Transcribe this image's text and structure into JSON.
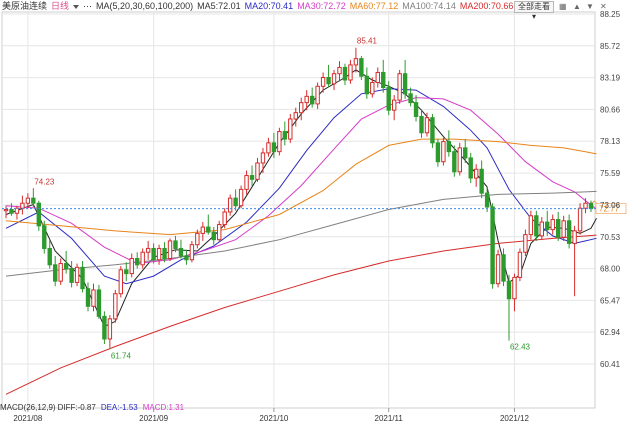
{
  "header": {
    "symbol": "美原油连续",
    "period": "日线",
    "ma_params": "MA(5,20,30,60,100,200)",
    "ma_values": [
      {
        "label": "MA5:72.01",
        "color": "#333333"
      },
      {
        "label": "MA20:70.41",
        "color": "#2b2bc4"
      },
      {
        "label": "MA30:72.72",
        "color": "#d63cc8"
      },
      {
        "label": "MA60:77.12",
        "color": "#e8841a"
      },
      {
        "label": "MA100:74.14",
        "color": "#808080"
      },
      {
        "label": "MA200:70.66",
        "color": "#d62c2c"
      }
    ],
    "dropdown_label": "全部走看",
    "icons": [
      "grid-icon",
      "up-icon",
      "down-icon",
      "close-icon"
    ]
  },
  "macd": {
    "params": "MACD(26,12,9)",
    "diff": "DIFF:-0.87",
    "dea": "DEA:-1.53",
    "macd": "MACD:1.31"
  },
  "colors": {
    "up": "#d62c2c",
    "down": "#2c9a2c",
    "grid": "#e6e6e6",
    "current_line": "#3b8de0",
    "current_tag_bg": "#ffffff",
    "current_tag_text": "#e8841a"
  },
  "chart_data": {
    "type": "candlestick",
    "y_ticks": [
      "88.25",
      "85.72",
      "83.19",
      "80.66",
      "78.13",
      "75.59",
      "73.06",
      "70.53",
      "68.00",
      "65.47",
      "62.94",
      "60.41"
    ],
    "ylim": [
      58.5,
      88.25
    ],
    "x_ticks": [
      {
        "label": "2021/08",
        "index": 4
      },
      {
        "label": "2021/09",
        "index": 27
      },
      {
        "label": "2021/10",
        "index": 49
      },
      {
        "label": "2021/11",
        "index": 70
      },
      {
        "label": "2021/12",
        "index": 93
      }
    ],
    "current_price": "72.77",
    "annotations": [
      {
        "text": "85.41",
        "index": 64,
        "value": 85.41,
        "color": "#c83232",
        "pos": "above"
      },
      {
        "text": "74.23",
        "index": 5,
        "value": 74.23,
        "color": "#c83232",
        "pos": "above"
      },
      {
        "text": "61.74",
        "index": 19,
        "value": 61.74,
        "color": "#2c9a2c",
        "pos": "below"
      },
      {
        "text": "62.43",
        "index": 92,
        "value": 62.43,
        "color": "#2c9a2c",
        "pos": "below"
      }
    ],
    "candles": [
      [
        72.6,
        73.0,
        72.0,
        72.7
      ],
      [
        72.7,
        73.2,
        72.2,
        72.4
      ],
      [
        72.4,
        73.0,
        71.9,
        72.8
      ],
      [
        72.8,
        73.8,
        72.3,
        73.2
      ],
      [
        73.2,
        74.0,
        72.8,
        73.6
      ],
      [
        73.6,
        74.23,
        72.9,
        73.2
      ],
      [
        73.2,
        73.4,
        71.0,
        71.4
      ],
      [
        71.4,
        71.8,
        69.2,
        69.6
      ],
      [
        69.6,
        70.3,
        68.0,
        68.3
      ],
      [
        68.3,
        69.0,
        66.6,
        67.0
      ],
      [
        67.0,
        68.8,
        66.7,
        68.4
      ],
      [
        68.4,
        69.4,
        67.6,
        68.0
      ],
      [
        68.0,
        68.6,
        66.5,
        66.9
      ],
      [
        66.9,
        68.4,
        66.6,
        68.1
      ],
      [
        68.1,
        68.6,
        66.1,
        66.4
      ],
      [
        66.4,
        66.9,
        64.6,
        65.0
      ],
      [
        65.0,
        66.8,
        64.6,
        66.3
      ],
      [
        66.3,
        66.7,
        64.0,
        64.2
      ],
      [
        64.2,
        64.6,
        62.0,
        62.4
      ],
      [
        62.4,
        64.3,
        61.74,
        64.0
      ],
      [
        64.0,
        66.3,
        63.7,
        66.0
      ],
      [
        66.0,
        68.2,
        65.7,
        67.9
      ],
      [
        67.9,
        68.5,
        67.0,
        67.6
      ],
      [
        67.6,
        69.2,
        67.3,
        68.8
      ],
      [
        68.8,
        69.3,
        68.0,
        68.3
      ],
      [
        68.3,
        69.6,
        68.0,
        69.3
      ],
      [
        69.3,
        70.2,
        68.7,
        69.6
      ],
      [
        69.6,
        70.0,
        68.4,
        68.7
      ],
      [
        68.7,
        69.9,
        68.3,
        69.6
      ],
      [
        69.6,
        70.1,
        68.5,
        68.8
      ],
      [
        68.8,
        70.4,
        68.6,
        70.2
      ],
      [
        70.2,
        70.6,
        69.3,
        69.6
      ],
      [
        69.6,
        70.3,
        68.8,
        69.0
      ],
      [
        69.0,
        69.5,
        68.3,
        68.7
      ],
      [
        68.7,
        70.2,
        68.5,
        69.9
      ],
      [
        69.9,
        71.1,
        69.6,
        70.8
      ],
      [
        70.8,
        71.7,
        70.2,
        71.3
      ],
      [
        71.3,
        72.3,
        70.7,
        70.9
      ],
      [
        70.9,
        71.3,
        69.9,
        70.3
      ],
      [
        70.3,
        71.8,
        70.1,
        71.5
      ],
      [
        71.5,
        72.8,
        71.2,
        72.5
      ],
      [
        72.5,
        73.9,
        72.2,
        73.6
      ],
      [
        73.6,
        74.3,
        72.6,
        73.0
      ],
      [
        73.0,
        74.6,
        72.8,
        74.3
      ],
      [
        74.3,
        75.8,
        73.9,
        75.4
      ],
      [
        75.4,
        76.2,
        74.6,
        75.1
      ],
      [
        75.1,
        76.8,
        74.9,
        76.4
      ],
      [
        76.4,
        77.6,
        75.6,
        77.2
      ],
      [
        77.2,
        78.4,
        76.9,
        78.0
      ],
      [
        78.0,
        78.8,
        76.8,
        77.3
      ],
      [
        77.3,
        79.2,
        77.0,
        78.9
      ],
      [
        78.9,
        79.7,
        77.8,
        78.3
      ],
      [
        78.3,
        80.3,
        78.0,
        79.9
      ],
      [
        79.9,
        80.8,
        79.3,
        80.4
      ],
      [
        80.4,
        81.6,
        79.8,
        81.2
      ],
      [
        81.2,
        82.2,
        80.6,
        81.7
      ],
      [
        81.7,
        82.4,
        80.8,
        81.1
      ],
      [
        81.1,
        82.8,
        80.7,
        82.5
      ],
      [
        82.5,
        83.6,
        82.0,
        83.2
      ],
      [
        83.2,
        84.2,
        82.4,
        82.7
      ],
      [
        82.7,
        83.8,
        82.2,
        83.5
      ],
      [
        83.5,
        84.5,
        82.9,
        84.0
      ],
      [
        84.0,
        84.3,
        82.6,
        83.0
      ],
      [
        83.0,
        84.6,
        82.7,
        84.2
      ],
      [
        84.2,
        85.41,
        83.6,
        84.7
      ],
      [
        84.7,
        84.9,
        83.0,
        83.3
      ],
      [
        83.3,
        84.0,
        81.5,
        81.9
      ],
      [
        81.9,
        83.2,
        81.6,
        82.8
      ],
      [
        82.8,
        84.0,
        82.4,
        83.6
      ],
      [
        83.6,
        84.6,
        82.0,
        82.4
      ],
      [
        82.4,
        82.9,
        80.2,
        80.6
      ],
      [
        80.6,
        81.8,
        79.8,
        81.4
      ],
      [
        81.4,
        83.8,
        81.1,
        83.5
      ],
      [
        83.5,
        84.6,
        81.5,
        81.9
      ],
      [
        81.9,
        82.4,
        80.9,
        81.2
      ],
      [
        81.2,
        81.8,
        79.7,
        80.1
      ],
      [
        80.1,
        80.6,
        78.4,
        78.8
      ],
      [
        78.8,
        80.4,
        78.5,
        80.0
      ],
      [
        80.0,
        80.3,
        77.6,
        78.0
      ],
      [
        78.0,
        78.3,
        76.1,
        76.5
      ],
      [
        76.5,
        78.4,
        76.2,
        78.1
      ],
      [
        78.1,
        79.0,
        76.9,
        77.3
      ],
      [
        77.3,
        77.8,
        75.3,
        75.7
      ],
      [
        75.7,
        78.0,
        75.4,
        77.6
      ],
      [
        77.6,
        78.3,
        76.4,
        76.8
      ],
      [
        76.8,
        77.2,
        74.8,
        75.2
      ],
      [
        75.2,
        76.3,
        74.5,
        75.9
      ],
      [
        75.9,
        76.6,
        73.6,
        74.0
      ],
      [
        74.0,
        74.5,
        72.5,
        72.9
      ],
      [
        72.9,
        73.2,
        66.4,
        66.8
      ],
      [
        66.8,
        69.5,
        66.5,
        69.1
      ],
      [
        69.1,
        69.6,
        66.6,
        67.0
      ],
      [
        67.0,
        67.5,
        62.43,
        65.6
      ],
      [
        65.6,
        67.6,
        64.6,
        67.3
      ],
      [
        67.3,
        69.6,
        67.0,
        69.3
      ],
      [
        69.3,
        71.1,
        69.0,
        70.7
      ],
      [
        70.7,
        72.6,
        70.3,
        72.2
      ],
      [
        72.2,
        72.6,
        70.2,
        70.6
      ],
      [
        70.6,
        72.1,
        70.3,
        71.7
      ],
      [
        71.7,
        72.6,
        70.6,
        71.1
      ],
      [
        71.1,
        72.3,
        70.7,
        71.9
      ],
      [
        71.9,
        72.5,
        70.2,
        70.5
      ],
      [
        70.5,
        72.2,
        70.2,
        71.8
      ],
      [
        71.8,
        72.3,
        69.6,
        70.0
      ],
      [
        70.0,
        71.4,
        65.8,
        71.0
      ],
      [
        71.0,
        73.2,
        70.7,
        72.8
      ],
      [
        72.8,
        73.6,
        72.4,
        73.2
      ],
      [
        73.2,
        73.4,
        72.5,
        72.77
      ]
    ],
    "series": [
      {
        "name": "MA5",
        "color": "#222222",
        "width": 1,
        "points": [
          [
            0,
            72.3
          ],
          [
            5,
            73.1
          ],
          [
            9,
            69.4
          ],
          [
            14,
            67.2
          ],
          [
            18,
            63.4
          ],
          [
            20,
            63.8
          ],
          [
            23,
            66.8
          ],
          [
            27,
            68.9
          ],
          [
            31,
            69.5
          ],
          [
            35,
            69.4
          ],
          [
            38,
            70.6
          ],
          [
            42,
            72.4
          ],
          [
            46,
            75.2
          ],
          [
            50,
            78.0
          ],
          [
            54,
            80.3
          ],
          [
            58,
            82.2
          ],
          [
            62,
            83.2
          ],
          [
            64,
            83.8
          ],
          [
            67,
            83.0
          ],
          [
            70,
            82.5
          ],
          [
            73,
            81.9
          ],
          [
            76,
            80.6
          ],
          [
            80,
            78.5
          ],
          [
            84,
            76.6
          ],
          [
            88,
            74.5
          ],
          [
            90,
            70.2
          ],
          [
            92,
            66.9
          ],
          [
            94,
            67.5
          ],
          [
            96,
            70.0
          ],
          [
            99,
            71.3
          ],
          [
            102,
            71.2
          ],
          [
            105,
            70.8
          ],
          [
            107,
            71.2
          ],
          [
            108,
            72.01
          ]
        ]
      },
      {
        "name": "MA20",
        "color": "#2b2bc4",
        "width": 1,
        "points": [
          [
            0,
            71.2
          ],
          [
            6,
            72.5
          ],
          [
            12,
            70.4
          ],
          [
            18,
            67.4
          ],
          [
            22,
            66.8
          ],
          [
            27,
            67.4
          ],
          [
            32,
            68.7
          ],
          [
            38,
            69.8
          ],
          [
            44,
            71.7
          ],
          [
            50,
            74.4
          ],
          [
            55,
            77.4
          ],
          [
            60,
            80.0
          ],
          [
            65,
            81.9
          ],
          [
            70,
            82.3
          ],
          [
            75,
            82.2
          ],
          [
            80,
            80.9
          ],
          [
            85,
            79.0
          ],
          [
            88,
            77.6
          ],
          [
            92,
            74.3
          ],
          [
            96,
            72.0
          ],
          [
            100,
            70.6
          ],
          [
            104,
            70.0
          ],
          [
            106,
            70.2
          ],
          [
            108,
            70.41
          ]
        ]
      },
      {
        "name": "MA30",
        "color": "#d63cc8",
        "width": 1,
        "points": [
          [
            0,
            73.0
          ],
          [
            6,
            72.8
          ],
          [
            12,
            71.6
          ],
          [
            18,
            69.7
          ],
          [
            24,
            68.4
          ],
          [
            30,
            68.7
          ],
          [
            36,
            69.4
          ],
          [
            42,
            70.3
          ],
          [
            48,
            72.2
          ],
          [
            54,
            74.6
          ],
          [
            60,
            77.5
          ],
          [
            65,
            79.9
          ],
          [
            70,
            81.0
          ],
          [
            75,
            81.6
          ],
          [
            80,
            81.5
          ],
          [
            85,
            80.6
          ],
          [
            90,
            78.7
          ],
          [
            95,
            76.5
          ],
          [
            100,
            74.9
          ],
          [
            104,
            74.1
          ],
          [
            106,
            73.4
          ],
          [
            108,
            72.72
          ]
        ]
      },
      {
        "name": "MA60",
        "color": "#e8841a",
        "width": 1,
        "points": [
          [
            0,
            71.8
          ],
          [
            10,
            71.4
          ],
          [
            20,
            71.0
          ],
          [
            30,
            70.7
          ],
          [
            40,
            71.1
          ],
          [
            50,
            72.3
          ],
          [
            58,
            74.2
          ],
          [
            64,
            76.3
          ],
          [
            70,
            77.8
          ],
          [
            76,
            78.3
          ],
          [
            82,
            78.3
          ],
          [
            90,
            78.1
          ],
          [
            96,
            77.8
          ],
          [
            102,
            77.6
          ],
          [
            106,
            77.3
          ],
          [
            108,
            77.12
          ]
        ]
      },
      {
        "name": "MA100",
        "color": "#808080",
        "width": 1,
        "points": [
          [
            0,
            67.4
          ],
          [
            10,
            67.9
          ],
          [
            20,
            68.3
          ],
          [
            30,
            68.8
          ],
          [
            40,
            69.4
          ],
          [
            50,
            70.3
          ],
          [
            60,
            71.5
          ],
          [
            70,
            72.7
          ],
          [
            80,
            73.5
          ],
          [
            90,
            73.9
          ],
          [
            100,
            74.0
          ],
          [
            106,
            74.1
          ],
          [
            108,
            74.14
          ]
        ]
      },
      {
        "name": "MA200",
        "color": "#d62c2c",
        "width": 1,
        "points": [
          [
            0,
            58.0
          ],
          [
            10,
            60.1
          ],
          [
            20,
            61.8
          ],
          [
            30,
            63.4
          ],
          [
            40,
            64.9
          ],
          [
            50,
            66.2
          ],
          [
            60,
            67.5
          ],
          [
            70,
            68.6
          ],
          [
            80,
            69.4
          ],
          [
            90,
            70.0
          ],
          [
            100,
            70.4
          ],
          [
            108,
            70.66
          ]
        ]
      }
    ]
  }
}
